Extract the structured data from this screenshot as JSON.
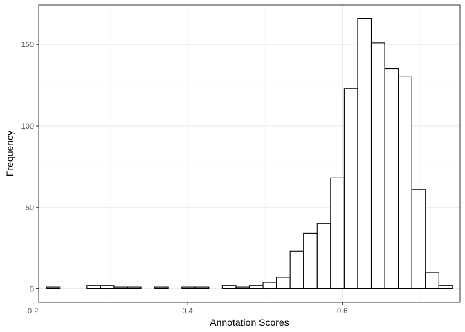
{
  "chart_data": {
    "type": "bar",
    "subtype": "histogram",
    "title": "",
    "xlabel": "Annotation Scores",
    "ylabel": "Frequency",
    "xlim": [
      0.2075,
      0.7525
    ],
    "ylim": [
      -8.3,
      174.3
    ],
    "x_ticks": [
      {
        "value": 0.2,
        "label": "0.2"
      },
      {
        "value": 0.4,
        "label": "0.4"
      },
      {
        "value": 0.6,
        "label": "0.6"
      }
    ],
    "y_ticks": [
      {
        "value": 0,
        "label": "0"
      },
      {
        "value": 50,
        "label": "50"
      },
      {
        "value": 100,
        "label": "100"
      },
      {
        "value": 150,
        "label": "150"
      }
    ],
    "x_minor_grid": [
      0.3,
      0.5,
      0.7
    ],
    "y_minor_grid": [
      25,
      75,
      125
    ],
    "grid": true,
    "bins": {
      "start": 0.2175,
      "width": 0.0175,
      "counts": [
        1,
        0,
        0,
        2,
        2,
        1,
        1,
        0,
        1,
        0,
        1,
        1,
        0,
        2,
        1,
        2,
        4,
        7,
        23,
        34,
        40,
        68,
        123,
        166,
        151,
        135,
        130,
        61,
        10,
        2
      ]
    },
    "colors": {
      "bar_fill": "#ffffff",
      "bar_stroke": "#000000",
      "panel_border": "#333333",
      "grid_major": "#ebebeb",
      "grid_minor": "#f5f5f5",
      "tick": "#333333"
    }
  }
}
